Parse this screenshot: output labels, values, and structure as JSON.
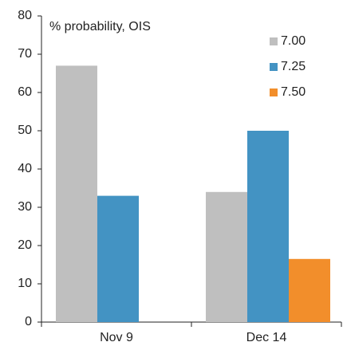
{
  "chart_data": {
    "type": "bar",
    "annotation": "% probability, OIS",
    "categories": [
      "Nov 9",
      "Dec 14"
    ],
    "series": [
      {
        "name": "7.00",
        "color": "#bfbfbf",
        "values": [
          67,
          34
        ]
      },
      {
        "name": "7.25",
        "color": "#4393c3",
        "values": [
          33,
          50
        ]
      },
      {
        "name": "7.50",
        "color": "#f28e2b",
        "values": [
          null,
          16.5
        ]
      }
    ],
    "ylim": [
      0,
      80
    ],
    "yticks": [
      0,
      10,
      20,
      30,
      40,
      50,
      60,
      70,
      80
    ],
    "grid": false,
    "legend": "top-right"
  }
}
